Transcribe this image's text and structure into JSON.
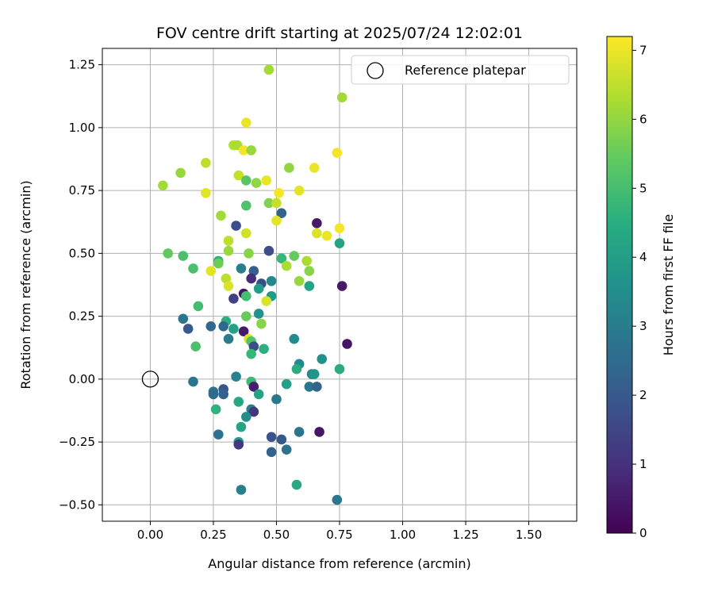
{
  "chart_data": {
    "type": "scatter",
    "title": "FOV centre drift starting at 2025/07/24 12:02:01",
    "xlabel": "Angular distance from reference (arcmin)",
    "ylabel": "Rotation from reference (arcmin)",
    "xlim": [
      -0.19,
      1.69
    ],
    "ylim": [
      -0.565,
      1.315
    ],
    "xticks": [
      "0.00",
      "0.25",
      "0.50",
      "0.75",
      "1.00",
      "1.25",
      "1.50"
    ],
    "yticks": [
      "−0.50",
      "−0.25",
      "0.00",
      "0.25",
      "0.50",
      "0.75",
      "1.00",
      "1.25"
    ],
    "grid": true,
    "legend": {
      "placement": "top-right",
      "entries": [
        "Reference platepar"
      ]
    },
    "reference_point": {
      "x": 0.0,
      "y": 0.0,
      "label": "Reference platepar"
    },
    "colorbar": {
      "label": "Hours from first FF file",
      "min": 0,
      "max": 7.2,
      "ticks": [
        "0",
        "1",
        "2",
        "3",
        "4",
        "5",
        "6",
        "7"
      ],
      "colormap": "viridis"
    },
    "series": [
      {
        "points": [
          {
            "x": 0.47,
            "y": 1.23,
            "c": 6.2
          },
          {
            "x": 0.76,
            "y": 1.12,
            "c": 6.2
          },
          {
            "x": 0.38,
            "y": 1.02,
            "c": 7.0
          },
          {
            "x": 0.33,
            "y": 0.93,
            "c": 6.4
          },
          {
            "x": 0.345,
            "y": 0.93,
            "c": 6.3
          },
          {
            "x": 0.37,
            "y": 0.91,
            "c": 7.1
          },
          {
            "x": 0.4,
            "y": 0.91,
            "c": 6.1
          },
          {
            "x": 0.74,
            "y": 0.9,
            "c": 7.1
          },
          {
            "x": 0.22,
            "y": 0.86,
            "c": 6.5
          },
          {
            "x": 0.12,
            "y": 0.82,
            "c": 6.1
          },
          {
            "x": 0.35,
            "y": 0.81,
            "c": 6.6
          },
          {
            "x": 0.55,
            "y": 0.84,
            "c": 6.0
          },
          {
            "x": 0.65,
            "y": 0.84,
            "c": 7.0
          },
          {
            "x": 0.38,
            "y": 0.79,
            "c": 5.3
          },
          {
            "x": 0.42,
            "y": 0.78,
            "c": 6.0
          },
          {
            "x": 0.46,
            "y": 0.79,
            "c": 7.0
          },
          {
            "x": 0.05,
            "y": 0.77,
            "c": 6.2
          },
          {
            "x": 0.22,
            "y": 0.74,
            "c": 6.9
          },
          {
            "x": 0.51,
            "y": 0.74,
            "c": 7.1
          },
          {
            "x": 0.59,
            "y": 0.75,
            "c": 6.9
          },
          {
            "x": 0.47,
            "y": 0.7,
            "c": 5.8
          },
          {
            "x": 0.5,
            "y": 0.7,
            "c": 6.6
          },
          {
            "x": 0.38,
            "y": 0.69,
            "c": 5.2
          },
          {
            "x": 0.28,
            "y": 0.65,
            "c": 6.2
          },
          {
            "x": 0.52,
            "y": 0.66,
            "c": 2.3
          },
          {
            "x": 0.5,
            "y": 0.63,
            "c": 6.9
          },
          {
            "x": 0.66,
            "y": 0.62,
            "c": 0.5
          },
          {
            "x": 0.34,
            "y": 0.61,
            "c": 1.7
          },
          {
            "x": 0.38,
            "y": 0.58,
            "c": 6.7
          },
          {
            "x": 0.66,
            "y": 0.58,
            "c": 6.8
          },
          {
            "x": 0.7,
            "y": 0.57,
            "c": 7.0
          },
          {
            "x": 0.75,
            "y": 0.6,
            "c": 7.1
          },
          {
            "x": 0.31,
            "y": 0.55,
            "c": 6.5
          },
          {
            "x": 0.75,
            "y": 0.54,
            "c": 4.2
          },
          {
            "x": 0.07,
            "y": 0.5,
            "c": 5.4
          },
          {
            "x": 0.13,
            "y": 0.49,
            "c": 5.1
          },
          {
            "x": 0.31,
            "y": 0.51,
            "c": 6.1
          },
          {
            "x": 0.39,
            "y": 0.5,
            "c": 5.9
          },
          {
            "x": 0.47,
            "y": 0.51,
            "c": 1.7
          },
          {
            "x": 0.52,
            "y": 0.48,
            "c": 4.8
          },
          {
            "x": 0.57,
            "y": 0.49,
            "c": 5.5
          },
          {
            "x": 0.27,
            "y": 0.47,
            "c": 4.6
          },
          {
            "x": 0.27,
            "y": 0.46,
            "c": 5.6
          },
          {
            "x": 0.54,
            "y": 0.45,
            "c": 6.3
          },
          {
            "x": 0.62,
            "y": 0.47,
            "c": 6.3
          },
          {
            "x": 0.63,
            "y": 0.43,
            "c": 5.9
          },
          {
            "x": 0.17,
            "y": 0.44,
            "c": 5.1
          },
          {
            "x": 0.24,
            "y": 0.43,
            "c": 6.9
          },
          {
            "x": 0.36,
            "y": 0.44,
            "c": 3.1
          },
          {
            "x": 0.41,
            "y": 0.43,
            "c": 2.1
          },
          {
            "x": 0.4,
            "y": 0.4,
            "c": 0.9
          },
          {
            "x": 0.3,
            "y": 0.4,
            "c": 6.5
          },
          {
            "x": 0.31,
            "y": 0.37,
            "c": 6.8
          },
          {
            "x": 0.44,
            "y": 0.38,
            "c": 1.7
          },
          {
            "x": 0.48,
            "y": 0.39,
            "c": 3.4
          },
          {
            "x": 0.59,
            "y": 0.39,
            "c": 6.1
          },
          {
            "x": 0.63,
            "y": 0.37,
            "c": 4.2
          },
          {
            "x": 0.76,
            "y": 0.37,
            "c": 0.5
          },
          {
            "x": 0.43,
            "y": 0.36,
            "c": 4.0
          },
          {
            "x": 0.37,
            "y": 0.34,
            "c": 0.4
          },
          {
            "x": 0.38,
            "y": 0.33,
            "c": 5.0
          },
          {
            "x": 0.33,
            "y": 0.32,
            "c": 1.4
          },
          {
            "x": 0.48,
            "y": 0.33,
            "c": 3.9
          },
          {
            "x": 0.46,
            "y": 0.31,
            "c": 6.8
          },
          {
            "x": 0.19,
            "y": 0.29,
            "c": 5.0
          },
          {
            "x": 0.43,
            "y": 0.26,
            "c": 3.7
          },
          {
            "x": 0.38,
            "y": 0.25,
            "c": 5.5
          },
          {
            "x": 0.13,
            "y": 0.24,
            "c": 2.8
          },
          {
            "x": 0.3,
            "y": 0.23,
            "c": 4.5
          },
          {
            "x": 0.44,
            "y": 0.22,
            "c": 5.9
          },
          {
            "x": 0.15,
            "y": 0.2,
            "c": 2.0
          },
          {
            "x": 0.24,
            "y": 0.21,
            "c": 2.4
          },
          {
            "x": 0.29,
            "y": 0.21,
            "c": 2.4
          },
          {
            "x": 0.33,
            "y": 0.2,
            "c": 4.1
          },
          {
            "x": 0.37,
            "y": 0.19,
            "c": 0.5
          },
          {
            "x": 0.39,
            "y": 0.16,
            "c": 6.8
          },
          {
            "x": 0.4,
            "y": 0.15,
            "c": 5.2
          },
          {
            "x": 0.31,
            "y": 0.16,
            "c": 3.0
          },
          {
            "x": 0.41,
            "y": 0.13,
            "c": 1.7
          },
          {
            "x": 0.45,
            "y": 0.12,
            "c": 4.5
          },
          {
            "x": 0.18,
            "y": 0.13,
            "c": 5.1
          },
          {
            "x": 0.57,
            "y": 0.16,
            "c": 3.5
          },
          {
            "x": 0.78,
            "y": 0.14,
            "c": 0.4
          },
          {
            "x": 0.4,
            "y": 0.1,
            "c": 4.8
          },
          {
            "x": 0.68,
            "y": 0.08,
            "c": 3.6
          },
          {
            "x": 0.59,
            "y": 0.06,
            "c": 3.4
          },
          {
            "x": 0.58,
            "y": 0.04,
            "c": 4.4
          },
          {
            "x": 0.75,
            "y": 0.04,
            "c": 4.4
          },
          {
            "x": 0.64,
            "y": 0.02,
            "c": 3.3
          },
          {
            "x": 0.65,
            "y": 0.02,
            "c": 3.8
          },
          {
            "x": 0.34,
            "y": 0.01,
            "c": 3.2
          },
          {
            "x": 0.17,
            "y": -0.01,
            "c": 2.8
          },
          {
            "x": 0.4,
            "y": -0.01,
            "c": 4.9
          },
          {
            "x": 0.54,
            "y": -0.02,
            "c": 4.1
          },
          {
            "x": 0.63,
            "y": -0.03,
            "c": 2.8
          },
          {
            "x": 0.66,
            "y": -0.03,
            "c": 2.3
          },
          {
            "x": 0.41,
            "y": -0.03,
            "c": 0.6
          },
          {
            "x": 0.29,
            "y": -0.04,
            "c": 1.9
          },
          {
            "x": 0.25,
            "y": -0.05,
            "c": 2.8
          },
          {
            "x": 0.25,
            "y": -0.06,
            "c": 2.5
          },
          {
            "x": 0.29,
            "y": -0.06,
            "c": 2.2
          },
          {
            "x": 0.43,
            "y": -0.06,
            "c": 4.2
          },
          {
            "x": 0.5,
            "y": -0.08,
            "c": 2.9
          },
          {
            "x": 0.35,
            "y": -0.09,
            "c": 4.3
          },
          {
            "x": 0.4,
            "y": -0.12,
            "c": 3.1
          },
          {
            "x": 0.41,
            "y": -0.13,
            "c": 1.1
          },
          {
            "x": 0.26,
            "y": -0.12,
            "c": 4.6
          },
          {
            "x": 0.38,
            "y": -0.15,
            "c": 3.5
          },
          {
            "x": 0.36,
            "y": -0.19,
            "c": 4.2
          },
          {
            "x": 0.27,
            "y": -0.22,
            "c": 2.7
          },
          {
            "x": 0.48,
            "y": -0.23,
            "c": 1.8
          },
          {
            "x": 0.52,
            "y": -0.24,
            "c": 2.0
          },
          {
            "x": 0.59,
            "y": -0.21,
            "c": 2.8
          },
          {
            "x": 0.67,
            "y": -0.21,
            "c": 0.4
          },
          {
            "x": 0.35,
            "y": -0.25,
            "c": 4.0
          },
          {
            "x": 0.35,
            "y": -0.26,
            "c": 1.2
          },
          {
            "x": 0.48,
            "y": -0.29,
            "c": 2.3
          },
          {
            "x": 0.54,
            "y": -0.28,
            "c": 2.7
          },
          {
            "x": 0.58,
            "y": -0.42,
            "c": 4.3
          },
          {
            "x": 0.36,
            "y": -0.44,
            "c": 3.1
          },
          {
            "x": 0.74,
            "y": -0.48,
            "c": 2.9
          }
        ]
      }
    ]
  }
}
